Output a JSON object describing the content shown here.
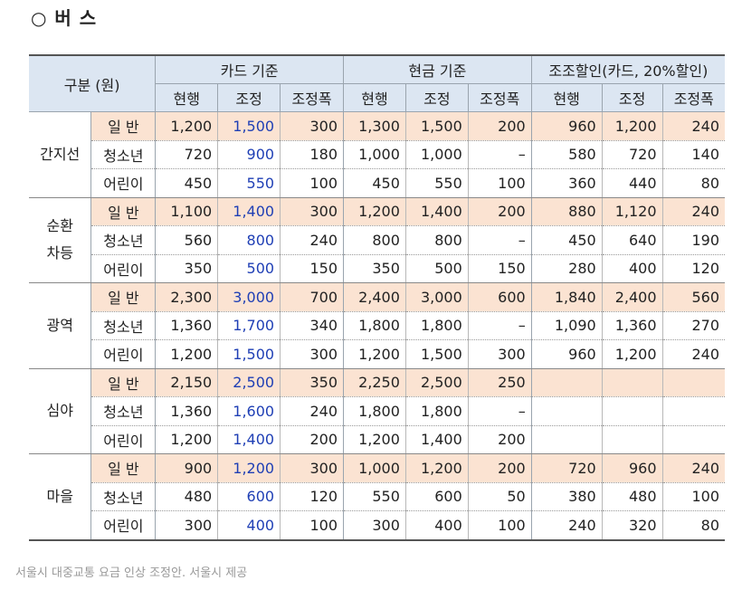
{
  "title": "○ 버  스",
  "caption": "서울시 대중교통 요금 인상 조정안. 서울시 제공",
  "header": {
    "category": "구분 (원)",
    "groups": [
      "카드 기준",
      "현금 기준",
      "조조할인(카드, 20%할인)"
    ],
    "sub": [
      "현행",
      "조정",
      "조정폭",
      "현행",
      "조정",
      "조정폭",
      "현행",
      "조정",
      "조정폭"
    ]
  },
  "colors": {
    "header_bg": "#dce6f2",
    "general_row_bg": "#fbe3d2",
    "adjusted_text": "#1f3fb5"
  },
  "sections": [
    {
      "name": "간지선",
      "rows": [
        {
          "type": "일 반",
          "cells": [
            "1,200",
            "1,500",
            "300",
            "1,300",
            "1,500",
            "200",
            "960",
            "1,200",
            "240"
          ]
        },
        {
          "type": "청소년",
          "cells": [
            "720",
            "900",
            "180",
            "1,000",
            "1,000",
            "–",
            "580",
            "720",
            "140"
          ]
        },
        {
          "type": "어린이",
          "cells": [
            "450",
            "550",
            "100",
            "450",
            "550",
            "100",
            "360",
            "440",
            "80"
          ]
        }
      ]
    },
    {
      "name": "순환\n차등",
      "rows": [
        {
          "type": "일 반",
          "cells": [
            "1,100",
            "1,400",
            "300",
            "1,200",
            "1,400",
            "200",
            "880",
            "1,120",
            "240"
          ]
        },
        {
          "type": "청소년",
          "cells": [
            "560",
            "800",
            "240",
            "800",
            "800",
            "–",
            "450",
            "640",
            "190"
          ]
        },
        {
          "type": "어린이",
          "cells": [
            "350",
            "500",
            "150",
            "350",
            "500",
            "150",
            "280",
            "400",
            "120"
          ]
        }
      ]
    },
    {
      "name": "광역",
      "rows": [
        {
          "type": "일 반",
          "cells": [
            "2,300",
            "3,000",
            "700",
            "2,400",
            "3,000",
            "600",
            "1,840",
            "2,400",
            "560"
          ]
        },
        {
          "type": "청소년",
          "cells": [
            "1,360",
            "1,700",
            "340",
            "1,800",
            "1,800",
            "–",
            "1,090",
            "1,360",
            "270"
          ]
        },
        {
          "type": "어린이",
          "cells": [
            "1,200",
            "1,500",
            "300",
            "1,200",
            "1,500",
            "300",
            "960",
            "1,200",
            "240"
          ]
        }
      ]
    },
    {
      "name": "심야",
      "rows": [
        {
          "type": "일 반",
          "cells": [
            "2,150",
            "2,500",
            "350",
            "2,250",
            "2,500",
            "250",
            "",
            "",
            ""
          ]
        },
        {
          "type": "청소년",
          "cells": [
            "1,360",
            "1,600",
            "240",
            "1,800",
            "1,800",
            "–",
            "",
            "",
            ""
          ]
        },
        {
          "type": "어린이",
          "cells": [
            "1,200",
            "1,400",
            "200",
            "1,200",
            "1,400",
            "200",
            "",
            "",
            ""
          ]
        }
      ]
    },
    {
      "name": "마을",
      "rows": [
        {
          "type": "일 반",
          "cells": [
            "900",
            "1,200",
            "300",
            "1,000",
            "1,200",
            "200",
            "720",
            "960",
            "240"
          ]
        },
        {
          "type": "청소년",
          "cells": [
            "480",
            "600",
            "120",
            "550",
            "600",
            "50",
            "380",
            "480",
            "100"
          ]
        },
        {
          "type": "어린이",
          "cells": [
            "300",
            "400",
            "100",
            "300",
            "400",
            "100",
            "240",
            "320",
            "80"
          ]
        }
      ]
    }
  ]
}
